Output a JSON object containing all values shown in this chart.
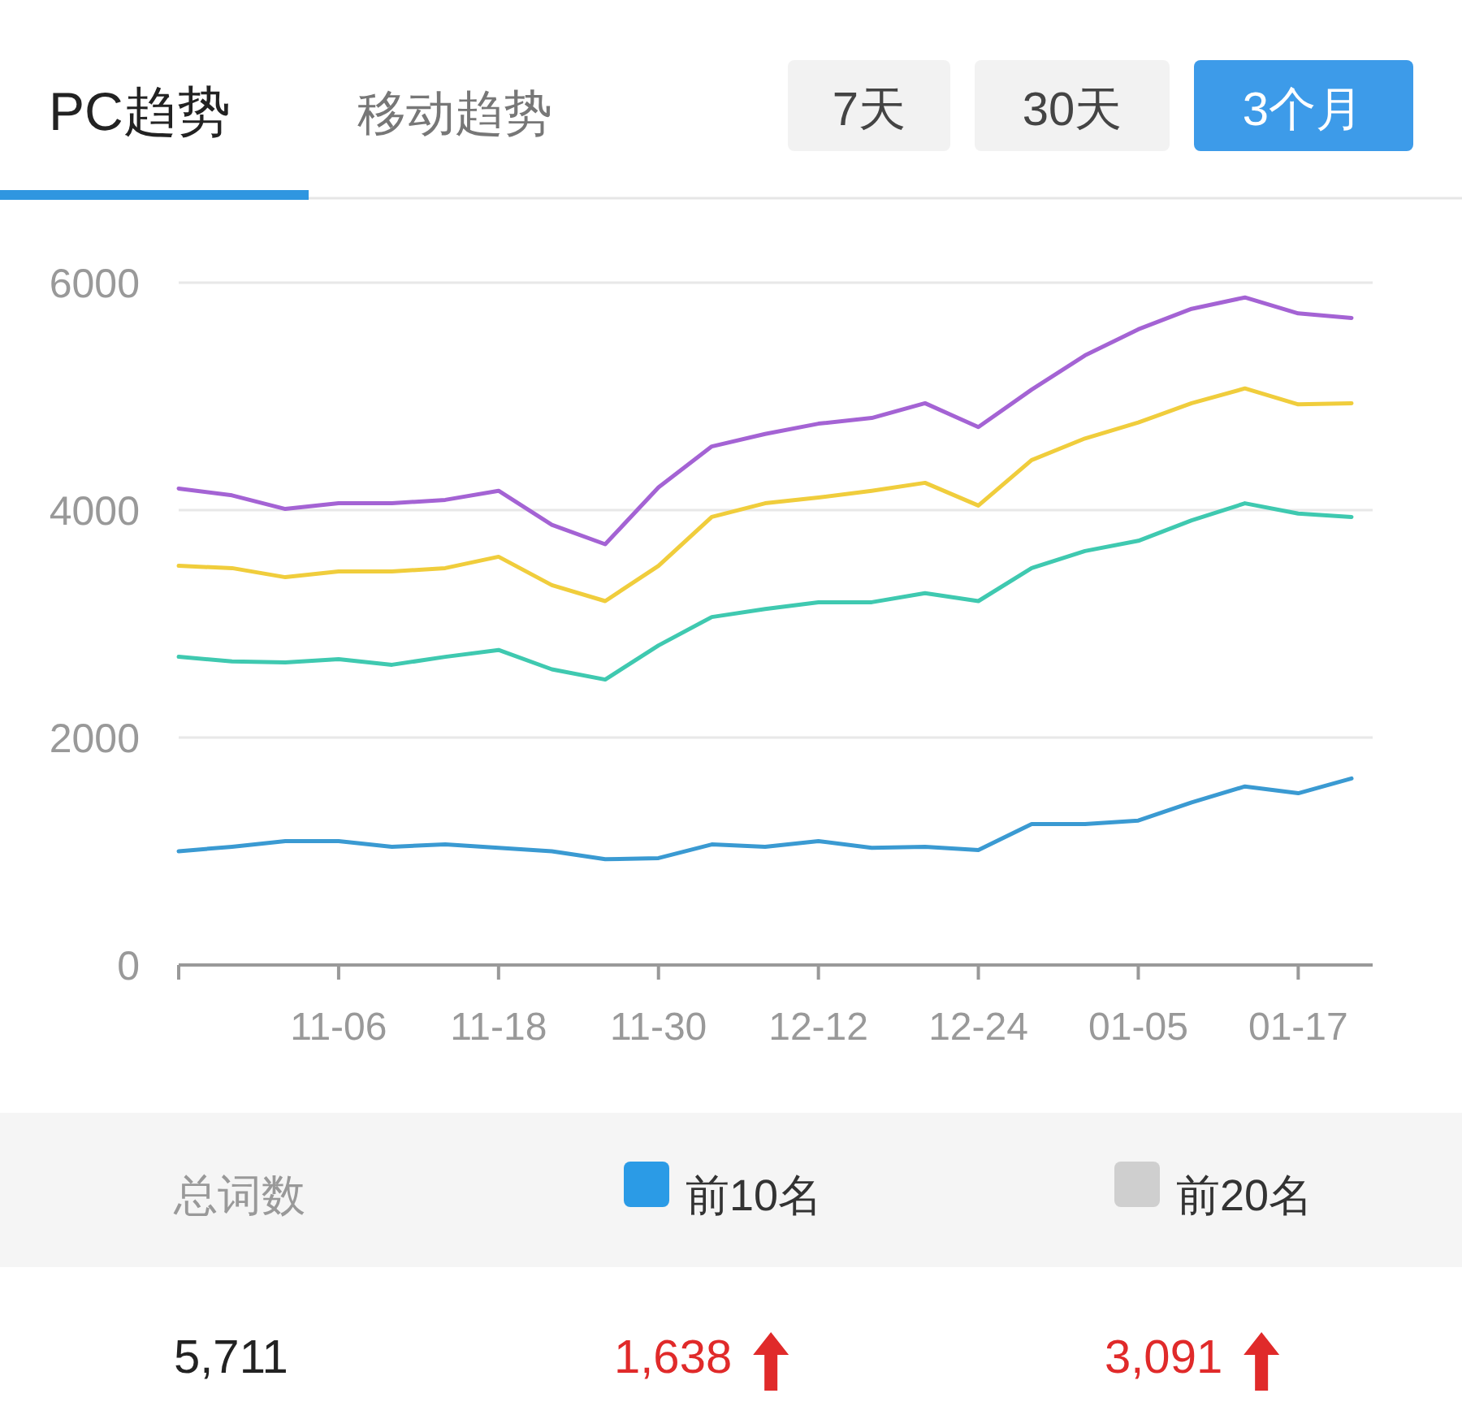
{
  "chart_data": [
    {
      "type": "line",
      "annotations": [
        "PC趋势",
        "移动趋势",
        "7天",
        "30天",
        "3个月"
      ],
      "categories": [
        null,
        null,
        null,
        "11-06",
        null,
        null,
        "11-18",
        null,
        null,
        "11-30",
        null,
        null,
        "12-12",
        null,
        null,
        "12-24",
        null,
        null,
        "01-05",
        null,
        null,
        "01-17",
        null
      ],
      "series": [
        {
          "color": "#a463d4",
          "values": [
            4190,
            4130,
            4010,
            4060,
            4060,
            4090,
            4170,
            3870,
            3700,
            4200,
            4560,
            4670,
            4760,
            4810,
            4940,
            4730,
            5060,
            5360,
            5590,
            5770,
            5870,
            5730,
            5690
          ]
        },
        {
          "color": "#f0cd3c",
          "values": [
            3510,
            3490,
            3410,
            3460,
            3460,
            3490,
            3590,
            3340,
            3200,
            3510,
            3940,
            4060,
            4110,
            4170,
            4240,
            4040,
            4440,
            4630,
            4770,
            4940,
            5070,
            4930,
            4940
          ]
        },
        {
          "color": "#3fc9b0",
          "values": [
            2710,
            2670,
            2660,
            2690,
            2640,
            2710,
            2770,
            2600,
            2510,
            2810,
            3060,
            3130,
            3190,
            3190,
            3270,
            3200,
            3490,
            3640,
            3730,
            3910,
            4060,
            3970,
            3940
          ]
        },
        {
          "color": "#3a9ad2",
          "values": [
            1000,
            1040,
            1090,
            1090,
            1040,
            1060,
            1030,
            1000,
            930,
            940,
            1060,
            1040,
            1090,
            1030,
            1040,
            1010,
            1240,
            1240,
            1270,
            1430,
            1570,
            1510,
            1640
          ]
        }
      ],
      "ylim": [
        0,
        6000
      ],
      "yticks": [
        0,
        2000,
        4000,
        6000
      ],
      "grid": "y",
      "marker": "none",
      "line_style": "solid"
    },
    {
      "type": "other",
      "categories": [
        "总词数",
        "前10名",
        "前20名"
      ],
      "value_labels": [
        "5,711",
        "1,638",
        "3,091"
      ],
      "colors": [
        null,
        "#2b9be6",
        "#cfcfcf"
      ]
    }
  ]
}
